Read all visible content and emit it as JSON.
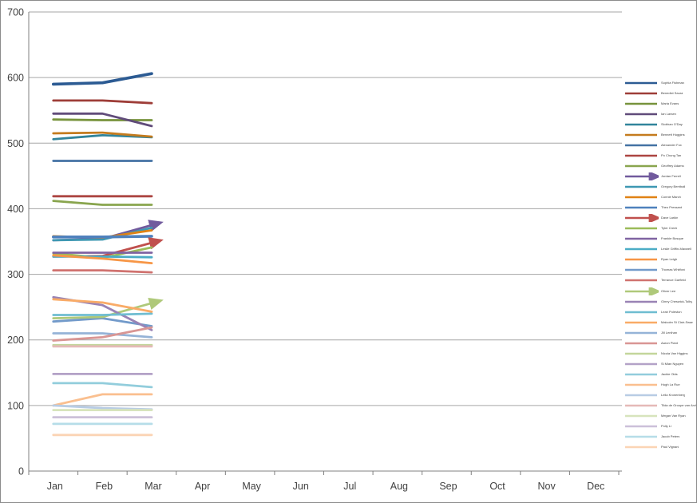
{
  "chart_data": {
    "type": "line",
    "title": "",
    "xlabel": "",
    "ylabel": "",
    "x_categories": [
      "Jan",
      "Feb",
      "Mar",
      "Apr",
      "May",
      "Jun",
      "Jul",
      "Aug",
      "Sep",
      "Oct",
      "Nov",
      "Dec"
    ],
    "months_with_data": [
      "Jan",
      "Feb",
      "Mar"
    ],
    "ylim": [
      0,
      700
    ],
    "ytick_interval": 100,
    "ytick_labels": [
      "0",
      "100",
      "200",
      "300",
      "400",
      "500",
      "600",
      "700"
    ],
    "grid": true,
    "legend_position": "right",
    "series": [
      {
        "name": "Sophia Fishman",
        "color": "#2C5B93",
        "values": [
          590,
          592,
          606
        ],
        "arrow": false,
        "thick": true
      },
      {
        "name": "Benedict Saura",
        "color": "#9E3D38",
        "values": [
          565,
          565,
          561
        ],
        "arrow": false
      },
      {
        "name": "Maria Evans",
        "color": "#77933C",
        "values": [
          536,
          535,
          535
        ],
        "arrow": false
      },
      {
        "name": "Ian Larsen",
        "color": "#604B7A",
        "values": [
          545,
          545,
          526
        ],
        "arrow": false
      },
      {
        "name": "Siobhan O'Day",
        "color": "#31849B",
        "values": [
          506,
          512,
          509
        ],
        "arrow": false
      },
      {
        "name": "Bennett Huggins",
        "color": "#C47B1E",
        "values": [
          515,
          516,
          510
        ],
        "arrow": false
      },
      {
        "name": "Alexander Fox",
        "color": "#4472A4",
        "values": [
          473,
          473,
          473
        ],
        "arrow": false
      },
      {
        "name": "Po Chung Tan",
        "color": "#AC4542",
        "values": [
          419,
          419,
          419
        ],
        "arrow": false
      },
      {
        "name": "Geoffrey Adams",
        "color": "#89A54E",
        "values": [
          412,
          406,
          406
        ],
        "arrow": false
      },
      {
        "name": "Jordan Ferrell",
        "color": "#715A9D",
        "values": [
          352,
          354,
          375
        ],
        "arrow": true
      },
      {
        "name": "Gregory Berriball",
        "color": "#3E98B2",
        "values": [
          352,
          353,
          371
        ],
        "arrow": false
      },
      {
        "name": "Connie March",
        "color": "#E08214",
        "values": [
          358,
          356,
          367
        ],
        "arrow": false
      },
      {
        "name": "Theo Pressant",
        "color": "#4F81BD",
        "values": [
          357,
          357,
          358
        ],
        "arrow": false,
        "thick": true
      },
      {
        "name": "Dave Larkin",
        "color": "#C0504D",
        "values": [
          327,
          328,
          348
        ],
        "arrow": true
      },
      {
        "name": "Tyler Creek",
        "color": "#9BBB59",
        "values": [
          332,
          325,
          341
        ],
        "arrow": false
      },
      {
        "name": "Frankie Bosque",
        "color": "#8064A2",
        "values": [
          333,
          333,
          333
        ],
        "arrow": false
      },
      {
        "name": "Leslie Griffin-Maxwell",
        "color": "#4BACC6",
        "values": [
          327,
          327,
          326
        ],
        "arrow": false
      },
      {
        "name": "Ryan Leigh",
        "color": "#F79646",
        "values": [
          329,
          324,
          317
        ],
        "arrow": false
      },
      {
        "name": "Thomas Whitford",
        "color": "#729ACA",
        "values": [
          228,
          233,
          221
        ],
        "arrow": false
      },
      {
        "name": "Terrance Garfield",
        "color": "#D0726F",
        "values": [
          306,
          306,
          303
        ],
        "arrow": false
      },
      {
        "name": "Oliver Lee",
        "color": "#AFC97A",
        "values": [
          233,
          235,
          256
        ],
        "arrow": true
      },
      {
        "name": "Ginny Cheswick-Tolby",
        "color": "#9983B5",
        "values": [
          265,
          253,
          215
        ],
        "arrow": false
      },
      {
        "name": "Leah Puleston",
        "color": "#6FBDD1",
        "values": [
          238,
          238,
          240
        ],
        "arrow": false
      },
      {
        "name": "Malcolm St Clair-Swan",
        "color": "#F9AB67",
        "values": [
          262,
          257,
          243
        ],
        "arrow": false
      },
      {
        "name": "Jill Lenihan",
        "color": "#95B3D7",
        "values": [
          210,
          210,
          204
        ],
        "arrow": false
      },
      {
        "name": "Aaron Plant",
        "color": "#D99694",
        "values": [
          199,
          204,
          219
        ],
        "arrow": false
      },
      {
        "name": "Nicola Van Higgins",
        "color": "#C3D69B",
        "values": [
          192,
          192,
          192
        ],
        "arrow": false
      },
      {
        "name": "Si Mian Nguyen",
        "color": "#B3A2C7",
        "values": [
          148,
          148,
          148
        ],
        "arrow": false
      },
      {
        "name": "Jackie Olds",
        "color": "#92CDDC",
        "values": [
          134,
          134,
          128
        ],
        "arrow": false
      },
      {
        "name": "Hugh La Rue",
        "color": "#FABF8F",
        "values": [
          100,
          117,
          117
        ],
        "arrow": false
      },
      {
        "name": "Leila Kronenberg",
        "color": "#B8CCE4",
        "values": [
          100,
          96,
          94
        ],
        "arrow": false
      },
      {
        "name": "Tilda de Groupe van Arch",
        "color": "#E5B9B7",
        "values": [
          190,
          190,
          190
        ],
        "arrow": false
      },
      {
        "name": "Megan Van Ryan",
        "color": "#D7E4BC",
        "values": [
          93,
          93,
          93
        ],
        "arrow": false
      },
      {
        "name": "Polly Li",
        "color": "#CCC0D9",
        "values": [
          82,
          82,
          82
        ],
        "arrow": false
      },
      {
        "name": "Jacob Peters",
        "color": "#B6DDE8",
        "values": [
          72,
          72,
          72
        ],
        "arrow": false
      },
      {
        "name": "Paul Vignani",
        "color": "#FBD4B4",
        "values": [
          55,
          55,
          55
        ],
        "arrow": false
      }
    ]
  },
  "colors": {
    "background": "#FFFFFF",
    "border": "#8C8C8C",
    "gridline": "#A6A6A6",
    "axis": "#808080",
    "tick_text": "#3F3F3F",
    "legend_text": "#404040"
  }
}
